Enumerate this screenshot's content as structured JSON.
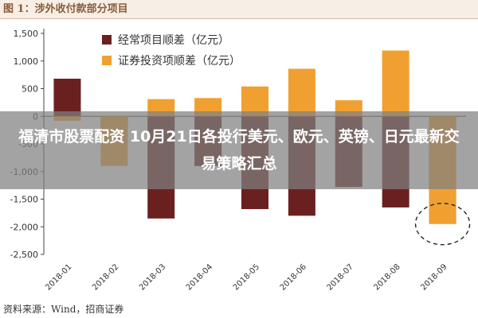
{
  "header": {
    "title": "图 1：涉外收付款部分项目"
  },
  "overlay": {
    "text": "福清市股票配资 10月21日各投行美元、欧元、英镑、日元最新交易策略汇总"
  },
  "footer": {
    "source": "资料来源：Wind，招商证券"
  },
  "chart_data": {
    "type": "bar",
    "categories": [
      "2018-01",
      "2018-02",
      "2018-03",
      "2018-04",
      "2018-05",
      "2018-06",
      "2018-07",
      "2018-08",
      "2018-09"
    ],
    "series": [
      {
        "name": "经常项目顺差（亿元）",
        "color": "#6b2020",
        "values": [
          680,
          -200,
          -1850,
          -900,
          -1680,
          -1800,
          -1280,
          -1650,
          -1920
        ]
      },
      {
        "name": "证券投资项顺差（亿元）",
        "color": "#f0a030",
        "values": [
          -80,
          -900,
          310,
          330,
          540,
          860,
          290,
          1190,
          -1950
        ]
      }
    ],
    "y_ticks": [
      "1,500",
      "1,000",
      "500",
      "0",
      "-500",
      "-1,000",
      "-1,500",
      "-2,000",
      "-2,500"
    ],
    "ylim": [
      -2500,
      1500
    ],
    "grid": false,
    "legend": "top-left",
    "annotation": "dashed circle around 2018-09"
  }
}
